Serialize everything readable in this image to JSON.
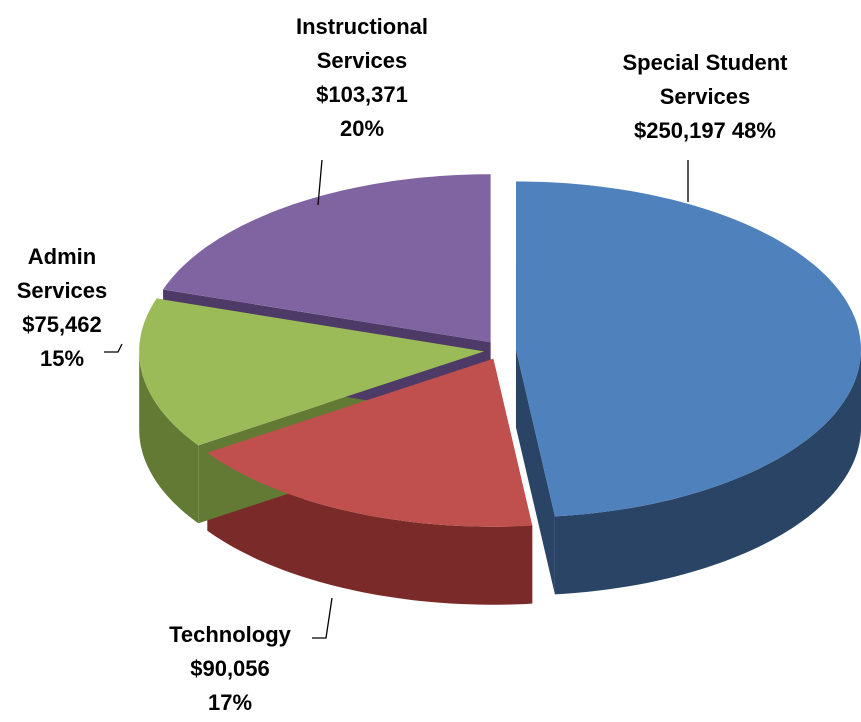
{
  "chart_data": {
    "type": "pie3d",
    "categories": [
      "Special Student Services",
      "Technology",
      "Admin Services",
      "Instructional Services"
    ],
    "values": [
      250197,
      90056,
      75462,
      103371
    ],
    "value_labels": [
      "$250,197",
      "$90,056",
      "$75,462",
      "$103,371"
    ],
    "percentages": [
      48,
      17,
      15,
      20
    ],
    "percentage_labels": [
      "48%",
      "17%",
      "15%",
      "20%"
    ],
    "colors": [
      "#4f81bd",
      "#c0504d",
      "#9bbb59",
      "#8064a2"
    ],
    "side_colors": [
      "#2a4466",
      "#7a2b29",
      "#637a35",
      "#4d3a66"
    ]
  }
}
